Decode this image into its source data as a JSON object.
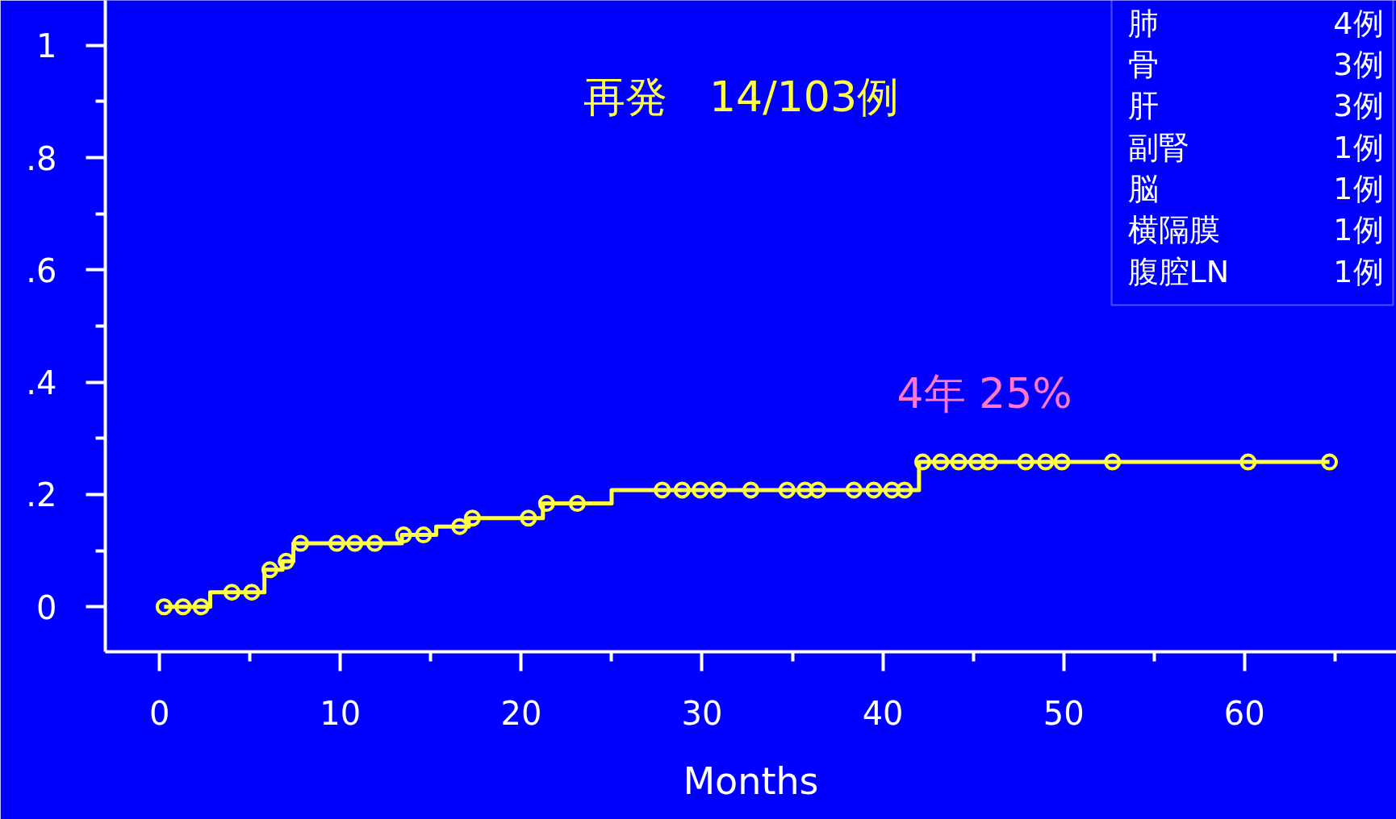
{
  "chart_data": {
    "type": "step",
    "title": "再発　14/103例",
    "xlabel": "Months",
    "xlim": [
      -3,
      68.4
    ],
    "ylim": [
      -0.08,
      1.08
    ],
    "xticks": [
      0,
      {
        "value": 5,
        "label": null
      },
      10,
      {
        "value": 15,
        "label": null
      },
      20,
      {
        "value": 25,
        "label": null
      },
      30,
      {
        "value": 35,
        "label": null
      },
      40,
      {
        "value": 45,
        "label": null
      },
      50,
      {
        "value": 55,
        "label": null
      },
      60,
      {
        "value": 65,
        "label": null
      }
    ],
    "yticks": [
      0,
      {
        "value": 0.1,
        "label": null
      },
      {
        "value": 0.2,
        "label": ".2"
      },
      {
        "value": 0.3,
        "label": null
      },
      {
        "value": 0.4,
        "label": ".4"
      },
      {
        "value": 0.5,
        "label": null
      },
      {
        "value": 0.6,
        "label": ".6"
      },
      {
        "value": 0.7,
        "label": null
      },
      {
        "value": 0.8,
        "label": ".8"
      },
      {
        "value": 0.9,
        "label": null
      },
      1
    ],
    "grid": false,
    "series": [
      {
        "color": "#ffff44",
        "marker": "none",
        "line_style": "solid",
        "x": [
          0.25,
          2.8,
          5.8,
          6.8,
          7.4,
          13.4,
          15.3,
          17.1,
          21.2,
          25,
          42,
          64.7
        ],
        "values": [
          0,
          0.026,
          0.066,
          0.081,
          0.113,
          0.128,
          0.143,
          0.158,
          0.184,
          0.208,
          0.258,
          0.258
        ]
      },
      {
        "type": "scatter",
        "color": "#ffff44",
        "marker": "circle",
        "x": [
          0.25,
          1.3,
          2.3,
          4.0,
          5.1,
          6.1,
          7.0,
          7.8,
          9.8,
          10.8,
          11.9,
          13.5,
          14.6,
          16.6,
          17.3,
          20.4,
          21.4,
          23.1,
          27.8,
          28.9,
          29.9,
          30.9,
          32.7,
          34.7,
          35.7,
          36.4,
          38.4,
          39.5,
          40.5,
          41.2,
          42.2,
          43.2,
          44.2,
          45.2,
          45.9,
          47.9,
          49.0,
          49.9,
          52.7,
          60.2,
          64.7
        ],
        "values": [
          0,
          0,
          0,
          0.026,
          0.026,
          0.066,
          0.081,
          0.113,
          0.113,
          0.113,
          0.113,
          0.128,
          0.128,
          0.143,
          0.158,
          0.158,
          0.184,
          0.184,
          0.208,
          0.208,
          0.208,
          0.208,
          0.208,
          0.208,
          0.208,
          0.208,
          0.208,
          0.208,
          0.208,
          0.208,
          0.258,
          0.258,
          0.258,
          0.258,
          0.258,
          0.258,
          0.258,
          0.258,
          0.258,
          0.258,
          0.258
        ]
      }
    ],
    "annotations": [
      {
        "text": "4年  25%",
        "x": 48,
        "y": 0.258
      },
      "肺 4例",
      "骨 3例",
      "肝 3例",
      "副腎 1例",
      "脳 1例",
      "横隔膜 1例",
      "腹腔LN 1例"
    ]
  }
}
